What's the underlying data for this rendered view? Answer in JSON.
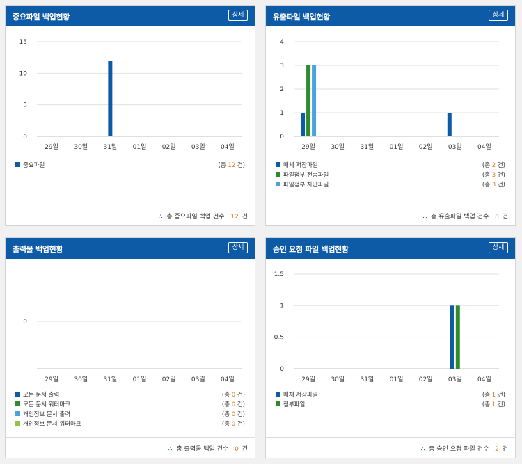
{
  "colors": {
    "header": "#0d5aa7",
    "accent_count": "#e07b1a",
    "series_blue": "#0d5aa7",
    "series_green": "#2e8b2e",
    "series_light_blue": "#4aa3e0",
    "series_yellow_green": "#8dc63f"
  },
  "common": {
    "detail_label": "상세",
    "total_prefix": "(총",
    "total_suffix": "건)"
  },
  "panels": [
    {
      "title": "중요파일 백업현황",
      "legend": [
        {
          "label": "중요파일",
          "count": "12",
          "color": "#0d5aa7"
        }
      ],
      "footer": {
        "icon": "∴",
        "label": "총 중요파일 백업 건수",
        "count": "12",
        "unit": "건"
      }
    },
    {
      "title": "유출파일 백업현황",
      "legend": [
        {
          "label": "매체 저장파일",
          "count": "2",
          "color": "#0d5aa7"
        },
        {
          "label": "파일첨부 전송파일",
          "count": "3",
          "color": "#2e8b2e"
        },
        {
          "label": "파일첨부 차단파일",
          "count": "3",
          "color": "#4aa3e0"
        }
      ],
      "footer": {
        "icon": "∴",
        "label": "총 유출파일 백업 건수",
        "count": "8",
        "unit": "건"
      }
    },
    {
      "title": "출력물 백업현황",
      "legend": [
        {
          "label": "모든 문서 출력",
          "count": "0",
          "color": "#0d5aa7"
        },
        {
          "label": "모든 문서 워터마크",
          "count": "0",
          "color": "#2e8b2e"
        },
        {
          "label": "개인정보 문서 출력",
          "count": "0",
          "color": "#4aa3e0"
        },
        {
          "label": "개인정보 문서 워터마크",
          "count": "0",
          "color": "#8dc63f"
        }
      ],
      "footer": {
        "icon": "∴",
        "label": "총 출력물 백업 건수",
        "count": "0",
        "unit": "건"
      }
    },
    {
      "title": "승인 요청 파일 백업현황",
      "legend": [
        {
          "label": "매체 저장파일",
          "count": "1",
          "color": "#0d5aa7"
        },
        {
          "label": "첨부파일",
          "count": "1",
          "color": "#2e8b2e"
        }
      ],
      "footer": {
        "icon": "∴",
        "label": "총 승인 요청 파일 건수",
        "count": "2",
        "unit": "건"
      }
    }
  ],
  "chart_data": [
    {
      "type": "bar",
      "categories": [
        "29일",
        "30일",
        "31일",
        "01일",
        "02일",
        "03일",
        "04일"
      ],
      "yticks": [
        0,
        5,
        10,
        15
      ],
      "ylim": [
        0,
        15
      ],
      "grid": true,
      "series": [
        {
          "name": "중요파일",
          "color": "#0d5aa7",
          "values": [
            0,
            0,
            12,
            0,
            0,
            0,
            0
          ]
        }
      ]
    },
    {
      "type": "bar",
      "categories": [
        "29일",
        "30일",
        "31일",
        "01일",
        "02일",
        "03일",
        "04일"
      ],
      "yticks": [
        0,
        1,
        2,
        3,
        4
      ],
      "ylim": [
        0,
        4
      ],
      "grid": true,
      "series": [
        {
          "name": "매체 저장파일",
          "color": "#0d5aa7",
          "values": [
            1,
            0,
            0,
            0,
            0,
            1,
            0
          ]
        },
        {
          "name": "파일첨부 전송파일",
          "color": "#2e8b2e",
          "values": [
            3,
            0,
            0,
            0,
            0,
            0,
            0
          ]
        },
        {
          "name": "파일첨부 차단파일",
          "color": "#4aa3e0",
          "values": [
            3,
            0,
            0,
            0,
            0,
            0,
            0
          ]
        }
      ]
    },
    {
      "type": "bar",
      "categories": [
        "29일",
        "30일",
        "31일",
        "01일",
        "02일",
        "03일",
        "04일"
      ],
      "yticks": [
        0
      ],
      "ylim": [
        0,
        1
      ],
      "grid": true,
      "series": [
        {
          "name": "모든 문서 출력",
          "color": "#0d5aa7",
          "values": [
            0,
            0,
            0,
            0,
            0,
            0,
            0
          ]
        },
        {
          "name": "모든 문서 워터마크",
          "color": "#2e8b2e",
          "values": [
            0,
            0,
            0,
            0,
            0,
            0,
            0
          ]
        },
        {
          "name": "개인정보 문서 출력",
          "color": "#4aa3e0",
          "values": [
            0,
            0,
            0,
            0,
            0,
            0,
            0
          ]
        },
        {
          "name": "개인정보 문서 워터마크",
          "color": "#8dc63f",
          "values": [
            0,
            0,
            0,
            0,
            0,
            0,
            0
          ]
        }
      ]
    },
    {
      "type": "bar",
      "categories": [
        "29일",
        "30일",
        "31일",
        "01일",
        "02일",
        "03일",
        "04일"
      ],
      "yticks": [
        0,
        0.5,
        1,
        1.5
      ],
      "ylim": [
        0,
        1.5
      ],
      "grid": true,
      "series": [
        {
          "name": "매체 저장파일",
          "color": "#0d5aa7",
          "values": [
            0,
            0,
            0,
            0,
            0,
            1,
            0
          ]
        },
        {
          "name": "첨부파일",
          "color": "#2e8b2e",
          "values": [
            0,
            0,
            0,
            0,
            0,
            1,
            0
          ]
        }
      ]
    }
  ]
}
